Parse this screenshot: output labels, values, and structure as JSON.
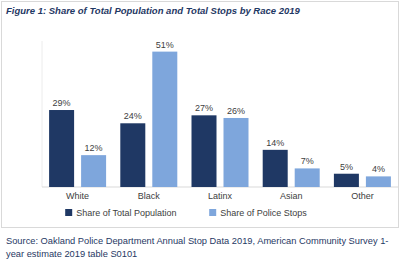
{
  "chart_data": {
    "type": "bar",
    "title": "Figure 1: Share of Total Population and Total Stops by Race 2019",
    "categories": [
      "White",
      "Black",
      "Latinx",
      "Asian",
      "Other"
    ],
    "series": [
      {
        "name": "Share of Total Population",
        "color": "#1f3864",
        "values": [
          29,
          24,
          27,
          14,
          5
        ],
        "value_labels": [
          "29%",
          "24%",
          "27%",
          "14%",
          "5%"
        ]
      },
      {
        "name": "Share of Police Stops",
        "color": "#7ea6dc",
        "values": [
          12,
          51,
          26,
          7,
          4
        ],
        "value_labels": [
          "12%",
          "51%",
          "26%",
          "7%",
          "4%"
        ]
      }
    ],
    "ylim": [
      0,
      55
    ],
    "grid": false,
    "legend": "bottom",
    "data_labels": true,
    "tick_labels": "x",
    "source": [
      "Source: Oakland Police Department Annual Stop Data 2019, American Community Survey 1-",
      "year estimate 2019 table S0101"
    ]
  }
}
